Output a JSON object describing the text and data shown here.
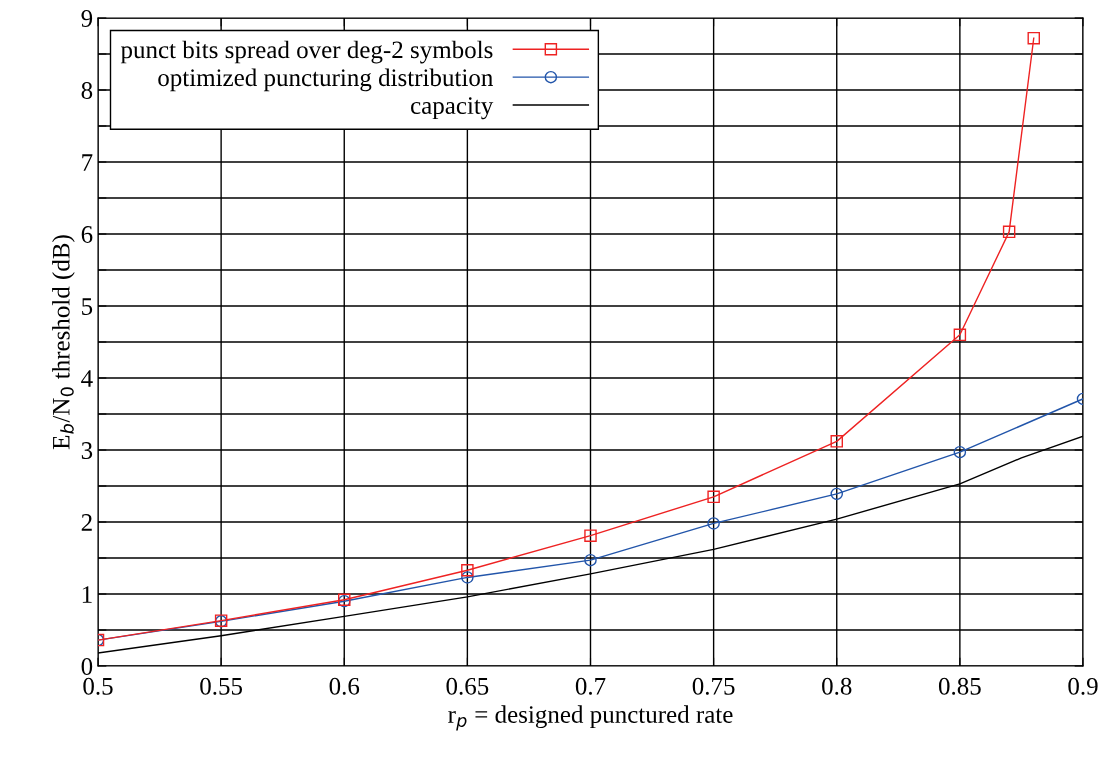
{
  "chart_data": {
    "type": "line",
    "xlabel": "r$_{p}$ = designed punctured rate",
    "ylabel": "E$_{b}$/N$_{0}$ threshold (dB)",
    "xlim": [
      0.5,
      0.9
    ],
    "ylim": [
      0,
      9
    ],
    "xticks": [
      0.5,
      0.55,
      0.6,
      0.65,
      0.7,
      0.75,
      0.8,
      0.85,
      0.9
    ],
    "yticks": [
      0,
      {
        "value": 0.5,
        "label": null
      },
      1,
      {
        "value": 1.5,
        "label": null
      },
      2,
      {
        "value": 2.5,
        "label": null
      },
      3,
      {
        "value": 3.5,
        "label": null
      },
      4,
      {
        "value": 4.5,
        "label": null
      },
      5,
      {
        "value": 5.5,
        "label": null
      },
      6,
      {
        "value": 6.5,
        "label": null
      },
      7,
      {
        "value": 7.5,
        "label": null
      },
      8,
      {
        "value": 8.5,
        "label": null
      },
      9
    ],
    "grid": true,
    "legend": "top left",
    "line_style": "solid",
    "series": [
      {
        "name": "punct bits spread over deg-2 symbols",
        "color": "#ee2222",
        "marker": "square",
        "x": [
          0.5,
          0.55,
          0.6,
          0.65,
          0.7,
          0.75,
          0.8,
          0.85,
          0.87,
          0.88
        ],
        "values": [
          0.36,
          0.63,
          0.92,
          1.33,
          1.81,
          2.35,
          3.12,
          4.6,
          6.03,
          8.72
        ]
      },
      {
        "name": "optimized puncturing distribution",
        "color": "#2255aa",
        "marker": "circle",
        "x": [
          0.5,
          0.55,
          0.6,
          0.65,
          0.7,
          0.75,
          0.8,
          0.85,
          0.9
        ],
        "values": [
          0.36,
          0.62,
          0.9,
          1.23,
          1.47,
          1.98,
          2.39,
          2.97,
          3.71
        ]
      },
      {
        "name": "capacity",
        "color": "#000000",
        "marker": "none",
        "x": [
          0.5,
          0.55,
          0.6,
          0.65,
          0.7,
          0.75,
          0.8,
          0.85,
          0.875,
          0.9
        ],
        "values": [
          0.18,
          0.42,
          0.69,
          0.96,
          1.28,
          1.62,
          2.04,
          2.53,
          2.89,
          3.19
        ]
      }
    ]
  }
}
